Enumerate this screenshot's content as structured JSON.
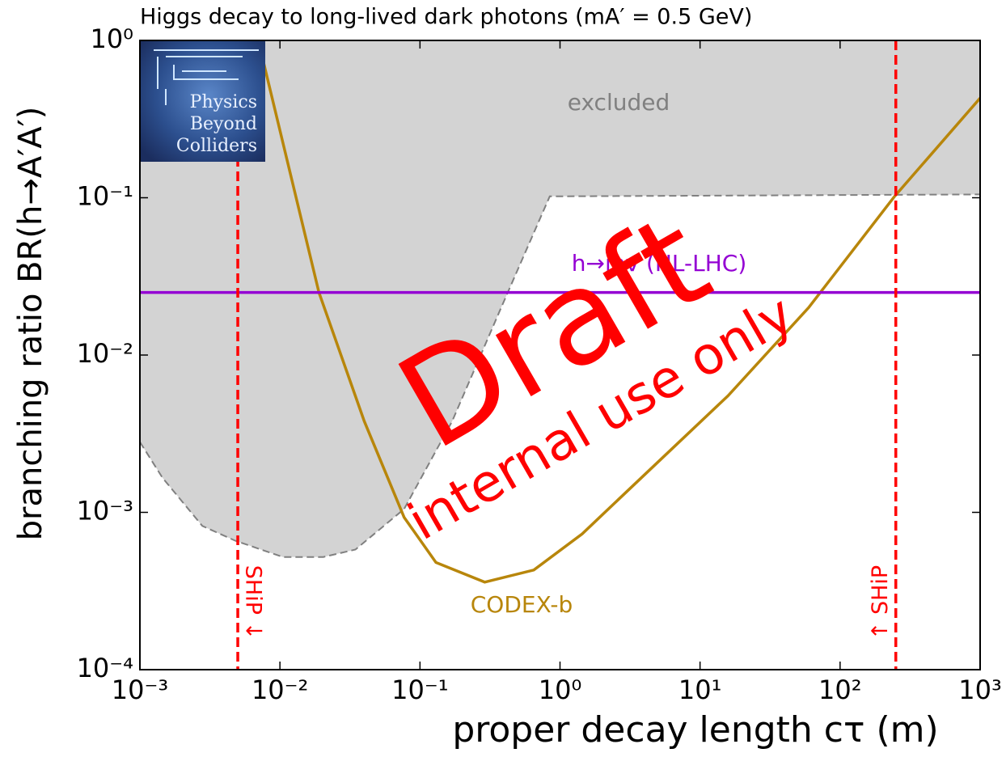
{
  "chart_data": {
    "type": "line",
    "title": "Higgs decay to long-lived dark photons (mA′ = 0.5 GeV)",
    "x_label": "proper decay length cτ (m)",
    "y_label": "branching ratio BR(h→A′A′)",
    "xlog": true,
    "ylog": true,
    "xlim": [
      0.001,
      1000
    ],
    "ylim": [
      0.0001,
      1
    ],
    "xticks": [
      {
        "value": 0.001,
        "label": "10⁻³"
      },
      {
        "value": 0.01,
        "label": "10⁻²"
      },
      {
        "value": 0.1,
        "label": "10⁻¹"
      },
      {
        "value": 1,
        "label": "10⁰"
      },
      {
        "value": 10,
        "label": "10¹"
      },
      {
        "value": 100,
        "label": "10²"
      },
      {
        "value": 1000,
        "label": "10³"
      }
    ],
    "yticks": [
      {
        "value": 0.0001,
        "label": "10⁻⁴"
      },
      {
        "value": 0.001,
        "label": "10⁻³"
      },
      {
        "value": 0.01,
        "label": "10⁻²"
      },
      {
        "value": 0.1,
        "label": "10⁻¹"
      },
      {
        "value": 1,
        "label": "10⁰"
      }
    ],
    "excluded": {
      "name": "excluded",
      "color": "#d3d3d3",
      "edge_color": "#808080",
      "x": [
        0.001,
        0.00145,
        0.00279,
        0.0048,
        0.0105,
        0.0204,
        0.0346,
        0.077,
        0.17,
        0.38,
        0.845,
        1000
      ],
      "values": [
        0.0028,
        0.00166,
        0.00082,
        0.00066,
        0.00052,
        0.00052,
        0.00058,
        0.00105,
        0.0038,
        0.02,
        0.102,
        0.105
      ]
    },
    "series": [
      {
        "name": "CODEX-b",
        "color": "#b8860b",
        "x": [
          0.0076,
          0.019,
          0.04,
          0.077,
          0.13,
          0.29,
          0.65,
          1.44,
          4.2,
          15.8,
          59.6,
          245,
          1000
        ],
        "values": [
          0.74,
          0.025,
          0.0038,
          0.00093,
          0.00048,
          0.00036,
          0.00043,
          0.00073,
          0.0018,
          0.0055,
          0.02,
          0.102,
          0.43
        ]
      },
      {
        "name": "h→inv (HL-LHC)",
        "color": "#9400d3",
        "x": [
          0.001,
          1000
        ],
        "values": [
          0.025,
          0.025
        ]
      }
    ],
    "vlines": {
      "color": "#ff0000",
      "x": [
        0.005,
        250
      ],
      "labels": [
        "SHiP ↓",
        "↑ SHiP"
      ]
    },
    "watermark": [
      "Draft",
      "internal use only"
    ],
    "logo": [
      "Physics",
      "Beyond",
      "Colliders"
    ]
  }
}
